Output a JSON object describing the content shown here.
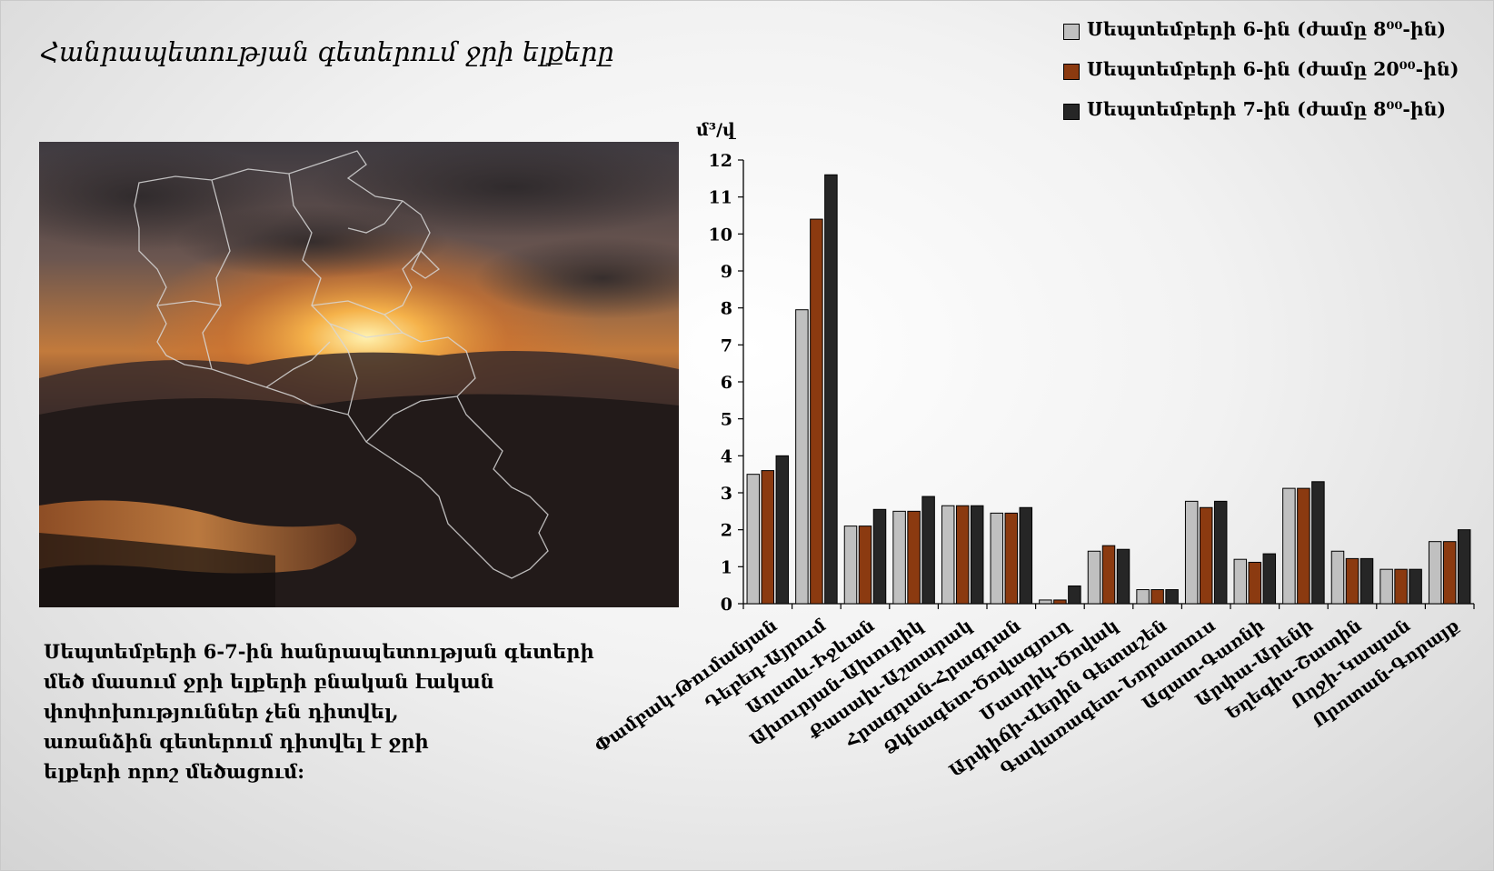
{
  "slide": {
    "title": "Հանրապետության գետերում ջրի ելքերը",
    "caption_lines": [
      "Սեպտեմբերի 6-7-ին հանրապետության գետերի",
      "մեծ մասում ջրի ելքերի բնական էական",
      "փոփոխություններ չեն դիտվել,",
      "առանձին գետերում դիտվել է ջրի",
      "ելքերի որոշ մեծացում:"
    ]
  },
  "colors": {
    "series_1": "#c0c0c0",
    "series_2": "#8b3a10",
    "series_3": "#262626"
  },
  "chart_data": {
    "type": "bar",
    "ylabel": "մ³/վ",
    "ylim": [
      0,
      12
    ],
    "yticks": [
      0,
      1,
      2,
      3,
      4,
      5,
      6,
      7,
      8,
      9,
      10,
      11,
      12
    ],
    "grid": false,
    "legend_position": "top-right",
    "categories": [
      "Փամբակ-Թումանյան",
      "Դեբեդ-Այրում",
      "Աղստև-Իջևան",
      "Ախուրյան-Ախուրիկ",
      "Քասախ-Աշտարակ",
      "Հրազդան-Հրազդան",
      "Ձկնագետ-Ծովագյուղ",
      "Մասրիկ-Ծովակ",
      "Արփիճի-Վերին Գետաշեն",
      "Գավառագետ-Նորատուս",
      "Ազատ-Գառնի",
      "Արփա-Արենի",
      "Եղեգիս-Շատին",
      "Ողջի-Կապան",
      "Որոտան-Գորայք"
    ],
    "series": [
      {
        "name": "Սեպտեմբերի 6-ին (ժամը 8⁰⁰-ին)",
        "values": [
          3.5,
          7.95,
          2.1,
          2.5,
          2.65,
          2.45,
          0.1,
          1.42,
          0.38,
          2.77,
          1.2,
          3.12,
          1.42,
          0.93,
          1.68
        ]
      },
      {
        "name": "Սեպտեմբերի 6-ին (ժամը 20⁰⁰-ին)",
        "values": [
          3.6,
          10.4,
          2.1,
          2.5,
          2.65,
          2.45,
          0.1,
          1.57,
          0.38,
          2.6,
          1.12,
          3.12,
          1.22,
          0.93,
          1.68
        ]
      },
      {
        "name": "Սեպտեմբերի 7-ին (ժամը 8⁰⁰-ին)",
        "values": [
          4.0,
          11.6,
          2.55,
          2.9,
          2.65,
          2.6,
          0.48,
          1.47,
          0.38,
          2.77,
          1.35,
          3.3,
          1.22,
          0.93,
          2.0
        ]
      }
    ]
  }
}
